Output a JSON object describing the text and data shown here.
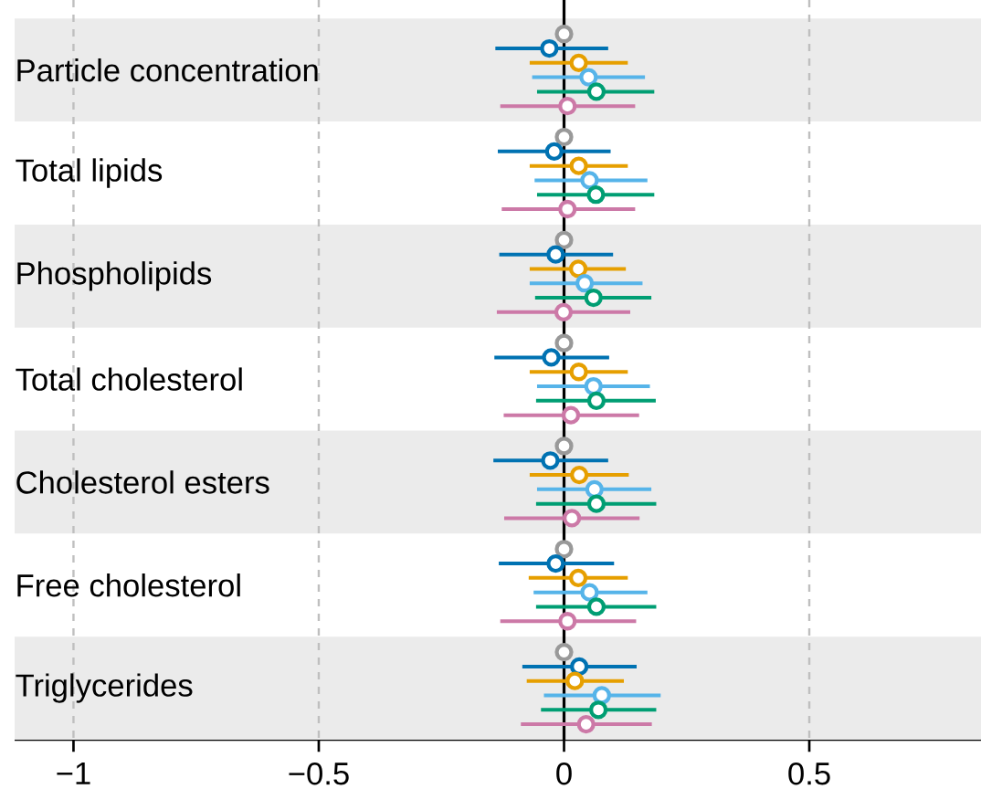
{
  "chart_data": {
    "type": "scatter",
    "orientation": "horizontal",
    "categories": [
      "Particle concentration",
      "Total lipids",
      "Phospholipids",
      "Total cholesterol",
      "Cholesterol esters",
      "Free cholesterol",
      "Triglycerides"
    ],
    "series": [
      {
        "color": "#999999",
        "values": [
          0,
          0,
          0,
          0,
          0,
          0,
          0
        ]
      },
      {
        "color": "#0072b2",
        "values": [
          -0.03,
          -0.02,
          -0.017,
          -0.026,
          -0.028,
          -0.017,
          0.031
        ],
        "errors": [
          [
            -0.14,
            0.09
          ],
          [
            -0.135,
            0.095
          ],
          [
            -0.132,
            0.1
          ],
          [
            -0.142,
            0.092
          ],
          [
            -0.144,
            0.09
          ],
          [
            -0.133,
            0.102
          ],
          [
            -0.085,
            0.148
          ]
        ]
      },
      {
        "color": "#e69f00",
        "values": [
          0.03,
          0.03,
          0.029,
          0.03,
          0.031,
          0.029,
          0.022
        ],
        "errors": [
          [
            -0.07,
            0.13
          ],
          [
            -0.07,
            0.13
          ],
          [
            -0.07,
            0.126
          ],
          [
            -0.07,
            0.13
          ],
          [
            -0.07,
            0.132
          ],
          [
            -0.072,
            0.13
          ],
          [
            -0.076,
            0.122
          ]
        ]
      },
      {
        "color": "#56b4e9",
        "values": [
          0.05,
          0.052,
          0.042,
          0.06,
          0.062,
          0.052,
          0.077
        ],
        "errors": [
          [
            -0.065,
            0.165
          ],
          [
            -0.06,
            0.17
          ],
          [
            -0.07,
            0.16
          ],
          [
            -0.055,
            0.175
          ],
          [
            -0.055,
            0.178
          ],
          [
            -0.062,
            0.17
          ],
          [
            -0.041,
            0.197
          ]
        ]
      },
      {
        "color": "#009e73",
        "values": [
          0.066,
          0.065,
          0.06,
          0.066,
          0.066,
          0.066,
          0.07
        ],
        "errors": [
          [
            -0.055,
            0.184
          ],
          [
            -0.055,
            0.184
          ],
          [
            -0.059,
            0.178
          ],
          [
            -0.057,
            0.187
          ],
          [
            -0.057,
            0.188
          ],
          [
            -0.057,
            0.188
          ],
          [
            -0.047,
            0.188
          ]
        ]
      },
      {
        "color": "#cc79a7",
        "values": [
          0.007,
          0.007,
          -0.001,
          0.014,
          0.016,
          0.007,
          0.045
        ],
        "errors": [
          [
            -0.13,
            0.145
          ],
          [
            -0.127,
            0.145
          ],
          [
            -0.137,
            0.135
          ],
          [
            -0.123,
            0.153
          ],
          [
            -0.122,
            0.154
          ],
          [
            -0.13,
            0.147
          ],
          [
            -0.088,
            0.179
          ]
        ]
      }
    ],
    "xlim": [
      -1.12,
      0.85
    ],
    "xticks": [
      {
        "value": -1,
        "label": "−1"
      },
      {
        "value": -0.5,
        "label": "−0.5"
      },
      0,
      0.5
    ],
    "grid": "x",
    "marker": "circle",
    "legend": false,
    "ref_lines": [
      {
        "axis": "x",
        "value": 0,
        "color": "#000000"
      }
    ],
    "bands": [
      {
        "axis": "y",
        "from": "Particle concentration",
        "to": "Particle concentration",
        "color": "#ebebeb"
      },
      {
        "axis": "y",
        "from": "Phospholipids",
        "to": "Phospholipids",
        "color": "#ebebeb"
      },
      {
        "axis": "y",
        "from": "Cholesterol esters",
        "to": "Cholesterol esters",
        "color": "#ebebeb"
      },
      {
        "axis": "y",
        "from": "Triglycerides",
        "to": "Triglycerides",
        "color": "#ebebeb"
      }
    ]
  }
}
